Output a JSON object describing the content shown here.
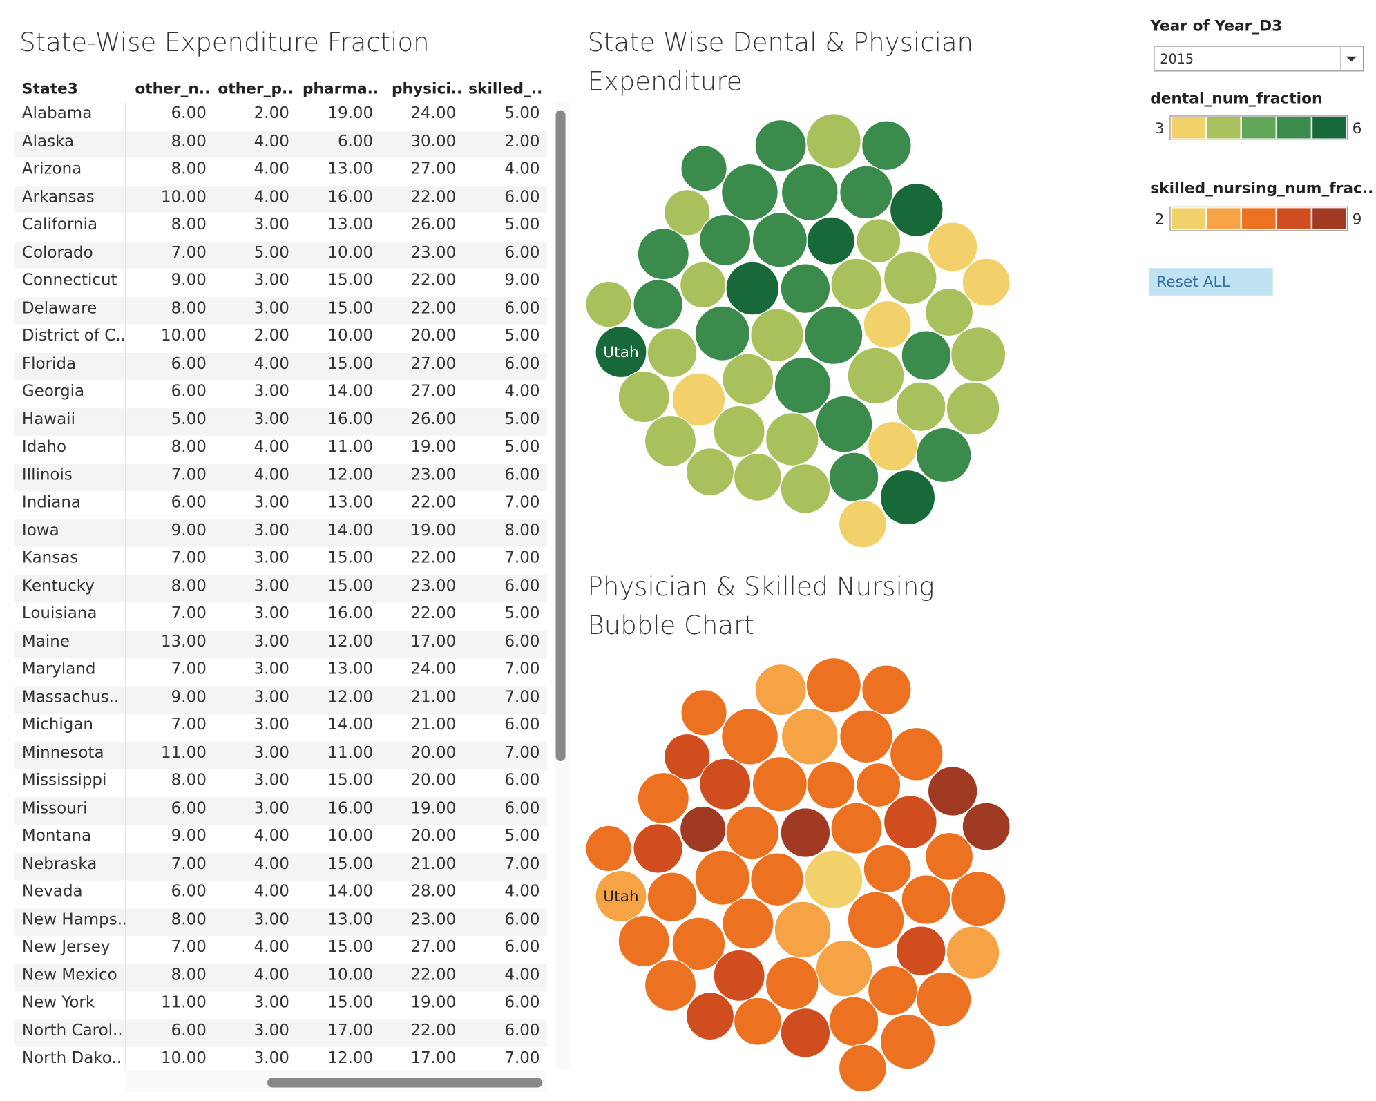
{
  "table": {
    "title": "State-Wise Expenditure Fraction",
    "columns": [
      "State3",
      "other_n..",
      "other_p..",
      "pharma..",
      "physici..",
      "skilled_.."
    ],
    "rows": [
      [
        "Alabama",
        "6.00",
        "2.00",
        "19.00",
        "24.00",
        "5.00"
      ],
      [
        "Alaska",
        "8.00",
        "4.00",
        "6.00",
        "30.00",
        "2.00"
      ],
      [
        "Arizona",
        "8.00",
        "4.00",
        "13.00",
        "27.00",
        "4.00"
      ],
      [
        "Arkansas",
        "10.00",
        "4.00",
        "16.00",
        "22.00",
        "6.00"
      ],
      [
        "California",
        "8.00",
        "3.00",
        "13.00",
        "26.00",
        "5.00"
      ],
      [
        "Colorado",
        "7.00",
        "5.00",
        "10.00",
        "23.00",
        "6.00"
      ],
      [
        "Connecticut",
        "9.00",
        "3.00",
        "15.00",
        "22.00",
        "9.00"
      ],
      [
        "Delaware",
        "8.00",
        "3.00",
        "15.00",
        "22.00",
        "6.00"
      ],
      [
        "District of C..",
        "10.00",
        "2.00",
        "10.00",
        "20.00",
        "5.00"
      ],
      [
        "Florida",
        "6.00",
        "4.00",
        "15.00",
        "27.00",
        "6.00"
      ],
      [
        "Georgia",
        "6.00",
        "3.00",
        "14.00",
        "27.00",
        "4.00"
      ],
      [
        "Hawaii",
        "5.00",
        "3.00",
        "16.00",
        "26.00",
        "5.00"
      ],
      [
        "Idaho",
        "8.00",
        "4.00",
        "11.00",
        "19.00",
        "5.00"
      ],
      [
        "Illinois",
        "7.00",
        "4.00",
        "12.00",
        "23.00",
        "6.00"
      ],
      [
        "Indiana",
        "6.00",
        "3.00",
        "13.00",
        "22.00",
        "7.00"
      ],
      [
        "Iowa",
        "9.00",
        "3.00",
        "14.00",
        "19.00",
        "8.00"
      ],
      [
        "Kansas",
        "7.00",
        "3.00",
        "15.00",
        "22.00",
        "7.00"
      ],
      [
        "Kentucky",
        "8.00",
        "3.00",
        "15.00",
        "23.00",
        "6.00"
      ],
      [
        "Louisiana",
        "7.00",
        "3.00",
        "16.00",
        "22.00",
        "5.00"
      ],
      [
        "Maine",
        "13.00",
        "3.00",
        "12.00",
        "17.00",
        "6.00"
      ],
      [
        "Maryland",
        "7.00",
        "3.00",
        "13.00",
        "24.00",
        "7.00"
      ],
      [
        "Massachus..",
        "9.00",
        "3.00",
        "12.00",
        "21.00",
        "7.00"
      ],
      [
        "Michigan",
        "7.00",
        "3.00",
        "14.00",
        "21.00",
        "6.00"
      ],
      [
        "Minnesota",
        "11.00",
        "3.00",
        "11.00",
        "20.00",
        "7.00"
      ],
      [
        "Mississippi",
        "8.00",
        "3.00",
        "15.00",
        "20.00",
        "6.00"
      ],
      [
        "Missouri",
        "6.00",
        "3.00",
        "16.00",
        "19.00",
        "6.00"
      ],
      [
        "Montana",
        "9.00",
        "4.00",
        "10.00",
        "20.00",
        "5.00"
      ],
      [
        "Nebraska",
        "7.00",
        "4.00",
        "15.00",
        "21.00",
        "7.00"
      ],
      [
        "Nevada",
        "6.00",
        "4.00",
        "14.00",
        "28.00",
        "4.00"
      ],
      [
        "New Hamps..",
        "8.00",
        "3.00",
        "13.00",
        "23.00",
        "6.00"
      ],
      [
        "New Jersey",
        "7.00",
        "4.00",
        "15.00",
        "27.00",
        "6.00"
      ],
      [
        "New Mexico",
        "8.00",
        "4.00",
        "10.00",
        "22.00",
        "4.00"
      ],
      [
        "New York",
        "11.00",
        "3.00",
        "15.00",
        "19.00",
        "6.00"
      ],
      [
        "North Carol..",
        "6.00",
        "3.00",
        "17.00",
        "22.00",
        "6.00"
      ],
      [
        "North Dako..",
        "10.00",
        "3.00",
        "12.00",
        "17.00",
        "7.00"
      ]
    ]
  },
  "dental_chart": {
    "title": "State Wise Dental & Physician Expenditure",
    "bubble_label": "Utah"
  },
  "nursing_chart": {
    "title": "Physician & Skilled Nursing Bubble Chart",
    "bubble_label": "Utah"
  },
  "filters": {
    "year_label": "Year of Year_D3",
    "year_value": "2015",
    "dental_legend": {
      "title": "dental_num_fraction",
      "min": "3",
      "max": "6",
      "colors": [
        "#f2d16b",
        "#a8c15c",
        "#62a657",
        "#3a8b4c",
        "#17693a"
      ]
    },
    "skilled_legend": {
      "title": "skilled_nursing_num_frac..",
      "min": "2",
      "max": "9",
      "colors": [
        "#f2d16b",
        "#f6a346",
        "#ec7221",
        "#d04d20",
        "#a03a23"
      ]
    },
    "reset": "Reset ALL"
  }
}
